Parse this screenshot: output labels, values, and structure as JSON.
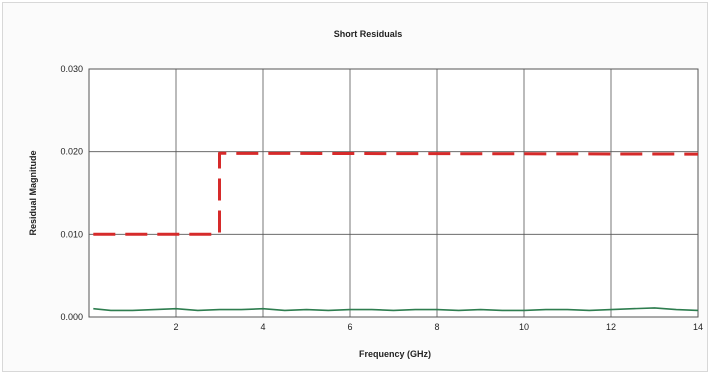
{
  "chart_data": {
    "type": "line",
    "title": "Short Residuals",
    "xlabel": "Frequency (GHz)",
    "ylabel": "Residual Magnitude",
    "xlim": [
      0,
      14
    ],
    "ylim": [
      0,
      0.03
    ],
    "x_ticks": [
      {
        "value": 2,
        "label": "2"
      },
      {
        "value": 4,
        "label": "4"
      },
      {
        "value": 6,
        "label": "6"
      },
      {
        "value": 8,
        "label": "8"
      },
      {
        "value": 10,
        "label": "10"
      },
      {
        "value": 12,
        "label": "12"
      },
      {
        "value": 14,
        "label": "14"
      }
    ],
    "y_ticks": [
      {
        "value": 0,
        "label": "0.000"
      },
      {
        "value": 0.01,
        "label": "0.010"
      },
      {
        "value": 0.02,
        "label": "0.020"
      },
      {
        "value": 0.03,
        "label": "0.030"
      }
    ],
    "grid": true,
    "legend": "none",
    "series": [
      {
        "style": "dashed",
        "color": "#d62a2a",
        "x": [
          0.1,
          3.0,
          3.0,
          14.0
        ],
        "y": [
          0.01,
          0.01,
          0.0198,
          0.0197
        ]
      },
      {
        "style": "solid",
        "color": "#2e7d4f",
        "x": [
          0.1,
          0.5,
          1.0,
          1.5,
          2.0,
          2.5,
          3.0,
          3.5,
          4.0,
          4.5,
          5.0,
          5.5,
          6.0,
          6.5,
          7.0,
          7.5,
          8.0,
          8.5,
          9.0,
          9.5,
          10.0,
          10.5,
          11.0,
          11.5,
          12.0,
          12.5,
          13.0,
          13.5,
          14.0
        ],
        "y": [
          0.001,
          0.0008,
          0.0008,
          0.0009,
          0.001,
          0.0008,
          0.0009,
          0.0009,
          0.001,
          0.0008,
          0.0009,
          0.0008,
          0.0009,
          0.0009,
          0.0008,
          0.0009,
          0.0009,
          0.0008,
          0.0009,
          0.0008,
          0.0008,
          0.0009,
          0.0009,
          0.0008,
          0.0009,
          0.001,
          0.0011,
          0.0009,
          0.0008
        ]
      }
    ]
  }
}
